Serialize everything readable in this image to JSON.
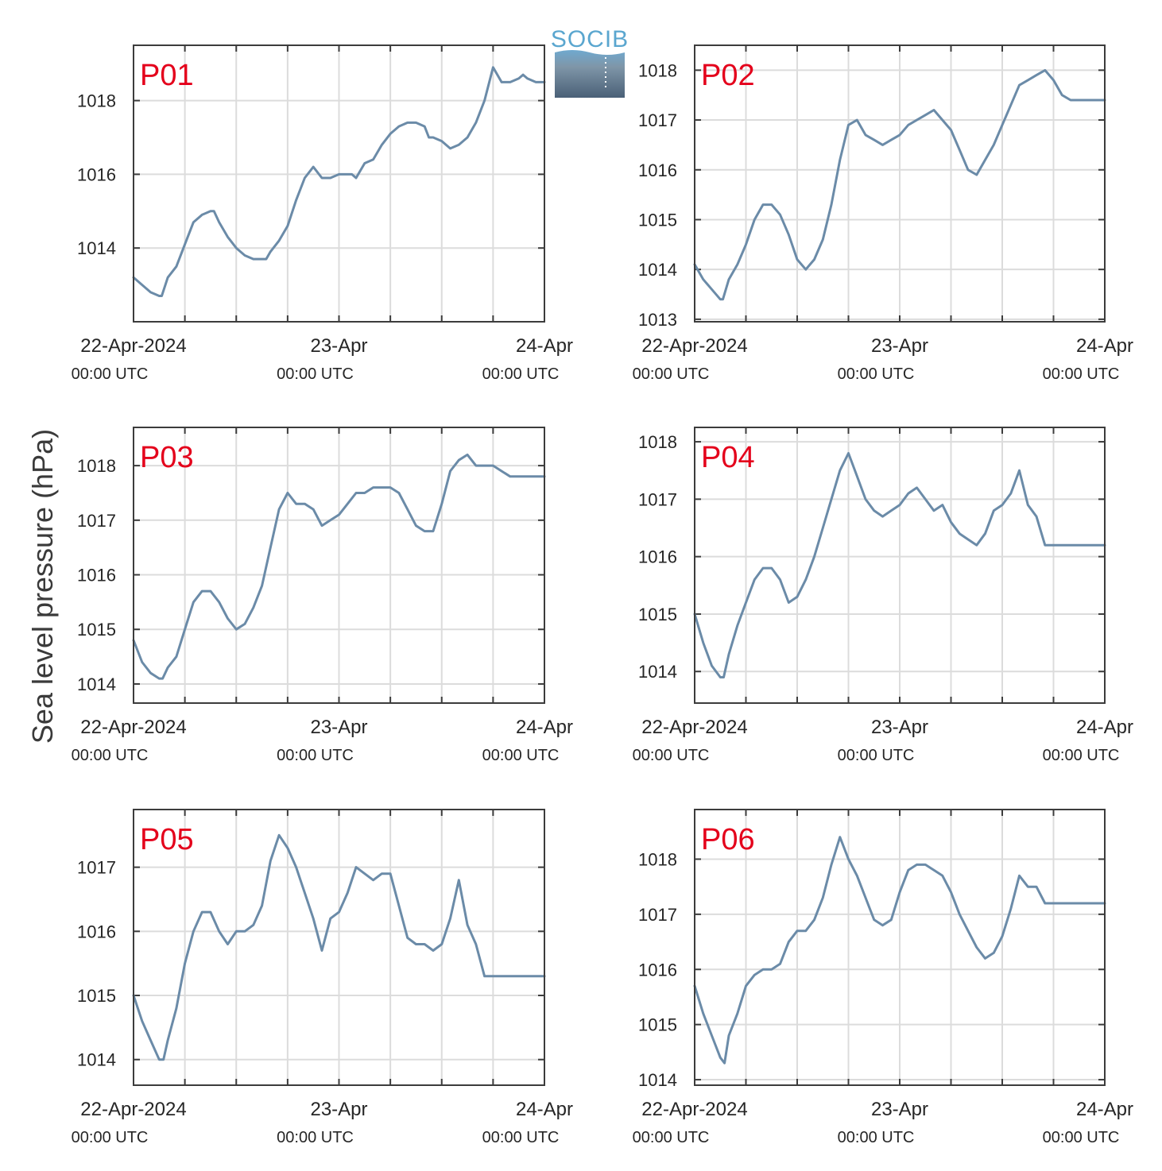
{
  "figure": {
    "ylabel": "Sea level pressure (hPa)",
    "logo_text": "SOCIB",
    "x_ticks": [
      {
        "date": "22-Apr-2024",
        "time": "00:00 UTC"
      },
      {
        "date": "23-Apr",
        "time": "00:00 UTC"
      },
      {
        "date": "24-Apr",
        "time": "00:00 UTC"
      }
    ],
    "series_color": "#6b8ba8",
    "label_color": "#e4001b"
  },
  "chart_data": [
    {
      "type": "line",
      "title": "P01",
      "xlim_hours": [
        0,
        48
      ],
      "ylim": [
        1012.0,
        1019.5
      ],
      "yticks": [
        1014,
        1016,
        1018
      ],
      "grid": true,
      "x": [
        0,
        1,
        2,
        3,
        3.3,
        4,
        5,
        6,
        7,
        8,
        9,
        9.4,
        10,
        11,
        12,
        13,
        14,
        15,
        15.5,
        16,
        17,
        18,
        19,
        20,
        21,
        22,
        23,
        24,
        25,
        25.5,
        26,
        27,
        28,
        29,
        30,
        31,
        32,
        33,
        34,
        34.5,
        35,
        36,
        37,
        38,
        39,
        40,
        41,
        42,
        43,
        44,
        45,
        45.5,
        46,
        47,
        48
      ],
      "y": [
        1013.2,
        1013.0,
        1012.8,
        1012.7,
        1012.7,
        1013.2,
        1013.5,
        1014.1,
        1014.7,
        1014.9,
        1015.0,
        1015.0,
        1014.7,
        1014.3,
        1014.0,
        1013.8,
        1013.7,
        1013.7,
        1013.7,
        1013.9,
        1014.2,
        1014.6,
        1015.3,
        1015.9,
        1016.2,
        1015.9,
        1015.9,
        1016.0,
        1016.0,
        1016.0,
        1015.9,
        1016.3,
        1016.4,
        1016.8,
        1017.1,
        1017.3,
        1017.4,
        1017.4,
        1017.3,
        1017.0,
        1017.0,
        1016.9,
        1016.7,
        1016.8,
        1017.0,
        1017.4,
        1018.0,
        1018.9,
        1018.5,
        1018.5,
        1018.6,
        1018.7,
        1018.6,
        1018.5,
        1018.5
      ]
    },
    {
      "type": "line",
      "title": "P02",
      "xlim_hours": [
        0,
        48
      ],
      "ylim": [
        1012.95,
        1018.5
      ],
      "yticks": [
        1013,
        1014,
        1015,
        1016,
        1017,
        1018
      ],
      "grid": true,
      "x": [
        0,
        1,
        2,
        3,
        3.3,
        4,
        5,
        6,
        7,
        8,
        9,
        10,
        11,
        12,
        13,
        14,
        15,
        16,
        17,
        18,
        19,
        20,
        21,
        22,
        23,
        24,
        25,
        26,
        27,
        28,
        29,
        30,
        31,
        32,
        33,
        34,
        35,
        36,
        37,
        38,
        39,
        40,
        41,
        42,
        43,
        44,
        45,
        45.5,
        46,
        47,
        48
      ],
      "y": [
        1014.1,
        1013.8,
        1013.6,
        1013.4,
        1013.4,
        1013.8,
        1014.1,
        1014.5,
        1015.0,
        1015.3,
        1015.3,
        1015.1,
        1014.7,
        1014.2,
        1014.0,
        1014.2,
        1014.6,
        1015.3,
        1016.2,
        1016.9,
        1017.0,
        1016.7,
        1016.6,
        1016.5,
        1016.6,
        1016.7,
        1016.9,
        1017.0,
        1017.1,
        1017.2,
        1017.0,
        1016.8,
        1016.4,
        1016.0,
        1015.9,
        1016.2,
        1016.5,
        1016.9,
        1017.3,
        1017.7,
        1017.8,
        1017.9,
        1018.0,
        1017.8,
        1017.5,
        1017.4,
        1017.4,
        1017.4,
        1017.4,
        1017.4,
        1017.4
      ]
    },
    {
      "type": "line",
      "title": "P03",
      "xlim_hours": [
        0,
        48
      ],
      "ylim": [
        1013.65,
        1018.7
      ],
      "yticks": [
        1014,
        1015,
        1016,
        1017,
        1018
      ],
      "grid": true,
      "x": [
        0,
        1,
        2,
        3,
        3.4,
        4,
        5,
        6,
        7,
        8,
        9,
        10,
        11,
        12,
        13,
        14,
        15,
        16,
        17,
        18,
        19,
        20,
        21,
        22,
        23,
        24,
        25,
        26,
        27,
        28,
        29,
        30,
        31,
        32,
        33,
        34,
        35,
        36,
        37,
        38,
        39,
        40,
        41,
        42,
        43,
        44,
        45,
        46,
        47,
        48
      ],
      "y": [
        1014.8,
        1014.4,
        1014.2,
        1014.1,
        1014.1,
        1014.3,
        1014.5,
        1015.0,
        1015.5,
        1015.7,
        1015.7,
        1015.5,
        1015.2,
        1015.0,
        1015.1,
        1015.4,
        1015.8,
        1016.5,
        1017.2,
        1017.5,
        1017.3,
        1017.3,
        1017.2,
        1016.9,
        1017.0,
        1017.1,
        1017.3,
        1017.5,
        1017.5,
        1017.6,
        1017.6,
        1017.6,
        1017.5,
        1017.2,
        1016.9,
        1016.8,
        1016.8,
        1017.3,
        1017.9,
        1018.1,
        1018.2,
        1018.0,
        1018.0,
        1018.0,
        1017.9,
        1017.8,
        1017.8,
        1017.8,
        1017.8,
        1017.8
      ]
    },
    {
      "type": "line",
      "title": "P04",
      "xlim_hours": [
        0,
        48
      ],
      "ylim": [
        1013.45,
        1018.25
      ],
      "yticks": [
        1014,
        1015,
        1016,
        1017,
        1018
      ],
      "grid": true,
      "x": [
        0,
        1,
        2,
        3,
        3.4,
        4,
        5,
        6,
        7,
        8,
        9,
        10,
        11,
        12,
        13,
        14,
        15,
        16,
        17,
        18,
        19,
        20,
        21,
        22,
        23,
        24,
        25,
        26,
        27,
        28,
        29,
        30,
        31,
        32,
        33,
        34,
        35,
        36,
        37,
        38,
        39,
        40,
        41,
        42,
        43,
        44,
        45,
        46,
        47,
        48
      ],
      "y": [
        1015.0,
        1014.5,
        1014.1,
        1013.9,
        1013.9,
        1014.3,
        1014.8,
        1015.2,
        1015.6,
        1015.8,
        1015.8,
        1015.6,
        1015.2,
        1015.3,
        1015.6,
        1016.0,
        1016.5,
        1017.0,
        1017.5,
        1017.8,
        1017.4,
        1017.0,
        1016.8,
        1016.7,
        1016.8,
        1016.9,
        1017.1,
        1017.2,
        1017.0,
        1016.8,
        1016.9,
        1016.6,
        1016.4,
        1016.3,
        1016.2,
        1016.4,
        1016.8,
        1016.9,
        1017.1,
        1017.5,
        1016.9,
        1016.7,
        1016.2,
        1016.2,
        1016.2,
        1016.2,
        1016.2,
        1016.2,
        1016.2,
        1016.2
      ]
    },
    {
      "type": "line",
      "title": "P05",
      "xlim_hours": [
        0,
        48
      ],
      "ylim": [
        1013.6,
        1017.9
      ],
      "yticks": [
        1014,
        1015,
        1016,
        1017
      ],
      "grid": true,
      "x": [
        0,
        1,
        2,
        3,
        3.5,
        4,
        5,
        6,
        7,
        8,
        9,
        10,
        11,
        12,
        13,
        14,
        15,
        16,
        17,
        18,
        19,
        20,
        21,
        22,
        23,
        24,
        25,
        26,
        27,
        28,
        29,
        30,
        31,
        32,
        33,
        34,
        35,
        36,
        37,
        38,
        39,
        40,
        41,
        42,
        43,
        44,
        45,
        46,
        47,
        48
      ],
      "y": [
        1015.0,
        1014.6,
        1014.3,
        1014.0,
        1014.0,
        1014.3,
        1014.8,
        1015.5,
        1016.0,
        1016.3,
        1016.3,
        1016.0,
        1015.8,
        1016.0,
        1016.0,
        1016.1,
        1016.4,
        1017.1,
        1017.5,
        1017.3,
        1017.0,
        1016.6,
        1016.2,
        1015.7,
        1016.2,
        1016.3,
        1016.6,
        1017.0,
        1016.9,
        1016.8,
        1016.9,
        1016.9,
        1016.4,
        1015.9,
        1015.8,
        1015.8,
        1015.7,
        1015.8,
        1016.2,
        1016.8,
        1016.1,
        1015.8,
        1015.3,
        1015.3,
        1015.3,
        1015.3,
        1015.3,
        1015.3,
        1015.3,
        1015.3
      ]
    },
    {
      "type": "line",
      "title": "P06",
      "xlim_hours": [
        0,
        48
      ],
      "ylim": [
        1013.9,
        1018.9
      ],
      "yticks": [
        1014,
        1015,
        1016,
        1017,
        1018
      ],
      "grid": true,
      "x": [
        0,
        1,
        2,
        3,
        3.5,
        4,
        5,
        6,
        7,
        8,
        9,
        10,
        11,
        12,
        13,
        14,
        15,
        16,
        17,
        18,
        19,
        20,
        21,
        22,
        23,
        24,
        25,
        26,
        27,
        28,
        29,
        30,
        31,
        32,
        33,
        34,
        35,
        36,
        37,
        38,
        39,
        40,
        41,
        42,
        43,
        44,
        45,
        46,
        47,
        48
      ],
      "y": [
        1015.7,
        1015.2,
        1014.8,
        1014.4,
        1014.3,
        1014.8,
        1015.2,
        1015.7,
        1015.9,
        1016.0,
        1016.0,
        1016.1,
        1016.5,
        1016.7,
        1016.7,
        1016.9,
        1017.3,
        1017.9,
        1018.4,
        1018.0,
        1017.7,
        1017.3,
        1016.9,
        1016.8,
        1016.9,
        1017.4,
        1017.8,
        1017.9,
        1017.9,
        1017.8,
        1017.7,
        1017.4,
        1017.0,
        1016.7,
        1016.4,
        1016.2,
        1016.3,
        1016.6,
        1017.1,
        1017.7,
        1017.5,
        1017.5,
        1017.2,
        1017.2,
        1017.2,
        1017.2,
        1017.2,
        1017.2,
        1017.2,
        1017.2
      ]
    }
  ]
}
